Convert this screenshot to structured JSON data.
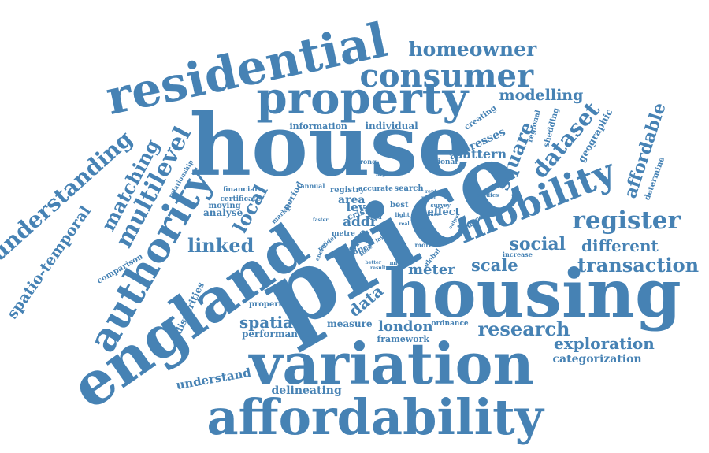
{
  "color": "#4682b4",
  "words": [
    "house",
    "price",
    "housing",
    "england",
    "variation",
    "affordability",
    "residential",
    "property",
    "authority",
    "mobility",
    "consumer",
    "homeowner",
    "register",
    "dataset",
    "multilevel",
    "understanding",
    "spatio-temporal",
    "matching",
    "local",
    "linked",
    "social",
    "transaction",
    "scale",
    "research",
    "exploration",
    "different",
    "data",
    "london",
    "modelling",
    "affordable",
    "square",
    "spatial",
    "pattern",
    "addresses",
    "understand",
    "delineating",
    "categorization",
    "meter",
    "size",
    "addr",
    "level",
    "area",
    "effect",
    "performance",
    "framework",
    "measure",
    "ordnance",
    "properties",
    "disparities",
    "comparison",
    "analyse",
    "moving",
    "certificate",
    "financial",
    "information",
    "individual",
    "creating",
    "regional",
    "shedding",
    "geographic",
    "determine",
    "national",
    "relationship",
    "annual",
    "registry",
    "accurate",
    "search",
    "period",
    "market",
    "strong",
    "higher",
    "crisis",
    "land",
    "best",
    "light",
    "metre",
    "paper",
    "layer",
    "energy",
    "model",
    "office",
    "lower",
    "more",
    "global",
    "middle",
    "source",
    "increase",
    "studies",
    "faster",
    "novel",
    "survey",
    "lack",
    "time",
    "base",
    "better",
    "result",
    "output",
    "real",
    "rent"
  ]
}
